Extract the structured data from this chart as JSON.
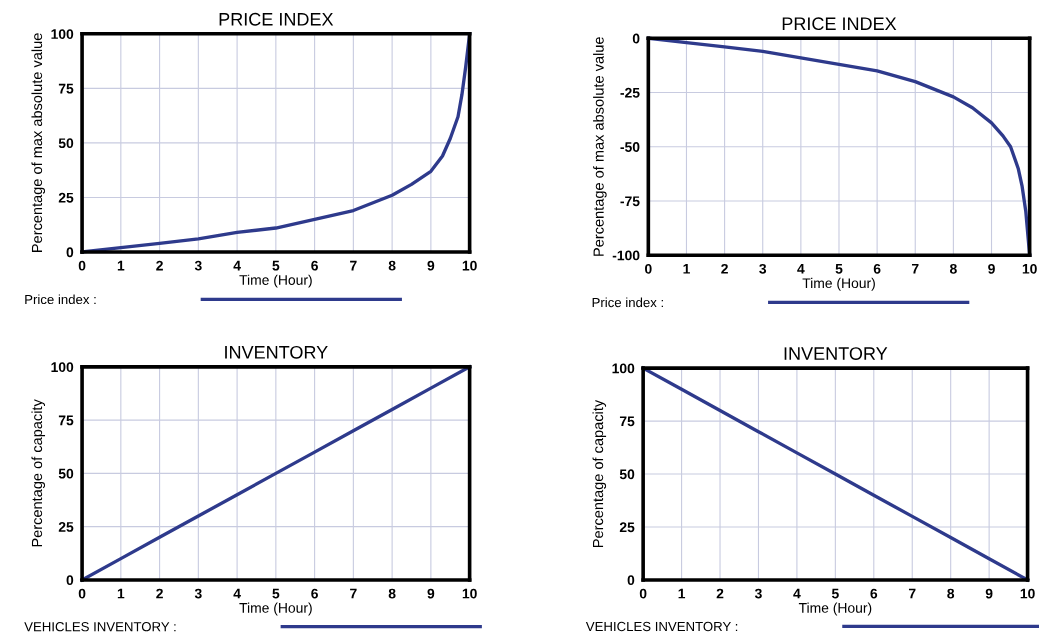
{
  "chart_data": [
    {
      "type": "line",
      "title": "PRICE INDEX",
      "xlabel": "Time (Hour)",
      "ylabel": "Percentage of max absolute value",
      "xlim": [
        0,
        10
      ],
      "ylim": [
        0,
        100
      ],
      "xticks": [
        0,
        1,
        2,
        3,
        4,
        5,
        6,
        7,
        8,
        9,
        10
      ],
      "yticks": [
        0,
        25,
        50,
        75,
        100
      ],
      "grid": true,
      "legend": "bottom",
      "marker": "none",
      "line_style": "solid",
      "series": [
        {
          "name": "Price index :",
          "color": "#2e3a8c",
          "x": [
            0,
            1,
            2,
            3,
            4,
            5,
            6,
            7,
            8,
            8.5,
            9,
            9.3,
            9.5,
            9.7,
            9.8,
            9.9,
            10
          ],
          "values": [
            0,
            2,
            4,
            6,
            9,
            11,
            15,
            19,
            26,
            31,
            37,
            44,
            52,
            62,
            72,
            85,
            100
          ]
        }
      ]
    },
    {
      "type": "line",
      "title": "PRICE INDEX",
      "xlabel": "Time (Hour)",
      "ylabel": "Percentage of max absolute value",
      "xlim": [
        0,
        10
      ],
      "ylim": [
        -100,
        0
      ],
      "xticks": [
        0,
        1,
        2,
        3,
        4,
        5,
        6,
        7,
        8,
        9,
        10
      ],
      "yticks": [
        -100,
        -75,
        -50,
        -25,
        0
      ],
      "grid": true,
      "legend": "bottom",
      "marker": "none",
      "line_style": "solid",
      "series": [
        {
          "name": "Price index :",
          "color": "#2e3a8c",
          "x": [
            0,
            1,
            2,
            3,
            4,
            5,
            6,
            7,
            8,
            8.5,
            9,
            9.3,
            9.5,
            9.7,
            9.8,
            9.9,
            10
          ],
          "values": [
            0,
            -2,
            -4,
            -6,
            -9,
            -12,
            -15,
            -20,
            -27,
            -32,
            -39,
            -45,
            -50,
            -60,
            -68,
            -80,
            -100
          ]
        }
      ]
    },
    {
      "type": "line",
      "title": "INVENTORY",
      "xlabel": "Time (Hour)",
      "ylabel": "Percentage of capacity",
      "xlim": [
        0,
        10
      ],
      "ylim": [
        0,
        100
      ],
      "xticks": [
        0,
        1,
        2,
        3,
        4,
        5,
        6,
        7,
        8,
        9,
        10
      ],
      "yticks": [
        0,
        25,
        50,
        75,
        100
      ],
      "grid": true,
      "legend": "bottom",
      "marker": "none",
      "line_style": "solid",
      "series": [
        {
          "name": "VEHICLES INVENTORY :",
          "color": "#2e3a8c",
          "x": [
            0,
            1,
            2,
            3,
            4,
            5,
            6,
            7,
            8,
            9,
            10
          ],
          "values": [
            0,
            10,
            20,
            30,
            40,
            50,
            60,
            70,
            80,
            90,
            100
          ]
        }
      ]
    },
    {
      "type": "line",
      "title": "INVENTORY",
      "xlabel": "Time (Hour)",
      "ylabel": "Percentage of capacity",
      "xlim": [
        0,
        10
      ],
      "ylim": [
        0,
        100
      ],
      "xticks": [
        0,
        1,
        2,
        3,
        4,
        5,
        6,
        7,
        8,
        9,
        10
      ],
      "yticks": [
        0,
        25,
        50,
        75,
        100
      ],
      "grid": true,
      "legend": "bottom",
      "marker": "none",
      "line_style": "solid",
      "series": [
        {
          "name": "VEHICLES INVENTORY :",
          "color": "#2e3a8c",
          "x": [
            0,
            1,
            2,
            3,
            4,
            5,
            6,
            7,
            8,
            9,
            10
          ],
          "values": [
            100,
            90,
            80,
            70,
            60,
            50,
            40,
            30,
            20,
            10,
            0
          ]
        }
      ]
    }
  ]
}
